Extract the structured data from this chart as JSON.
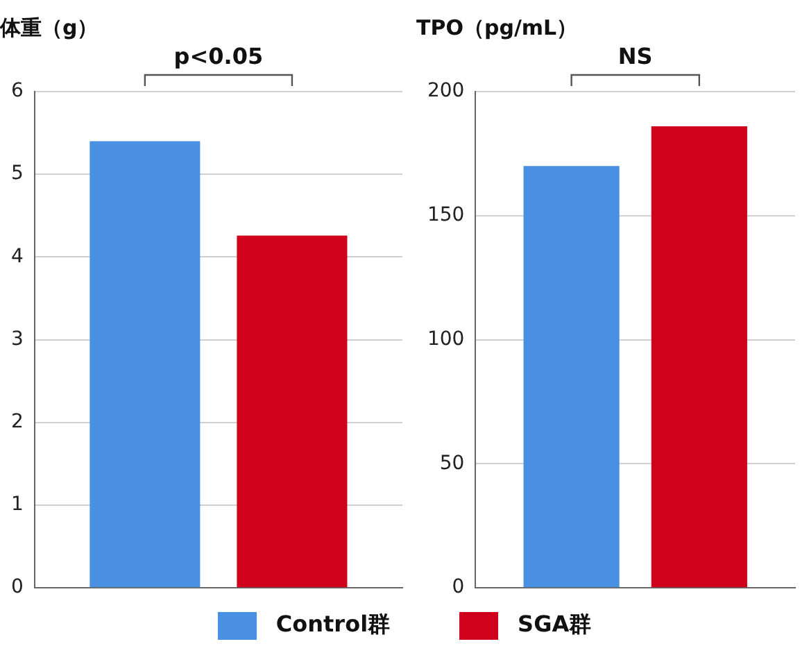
{
  "chart_data": [
    {
      "type": "bar",
      "ylabel": "体重（g）",
      "annotations": [
        "p<0.05"
      ],
      "categories": [
        null
      ],
      "series": [
        {
          "name": "Control群",
          "color": "#4a90e2",
          "values": [
            5.4
          ]
        },
        {
          "name": "SGA群",
          "color": "#d0021b",
          "values": [
            4.26
          ]
        }
      ],
      "ylim": [
        0,
        6
      ],
      "yticks": [
        0,
        1,
        2,
        3,
        4,
        5,
        6
      ],
      "grid": "y",
      "legend": "bottom"
    },
    {
      "type": "bar",
      "ylabel": "TPO（pg/mL）",
      "annotations": [
        "NS"
      ],
      "categories": [
        null
      ],
      "series": [
        {
          "color": "#4a90e2",
          "values": [
            170
          ]
        },
        {
          "color": "#d0021b",
          "values": [
            186
          ]
        }
      ],
      "ylim": [
        0,
        200
      ],
      "yticks": [
        0,
        50,
        100,
        150,
        200
      ],
      "grid": "y"
    }
  ]
}
